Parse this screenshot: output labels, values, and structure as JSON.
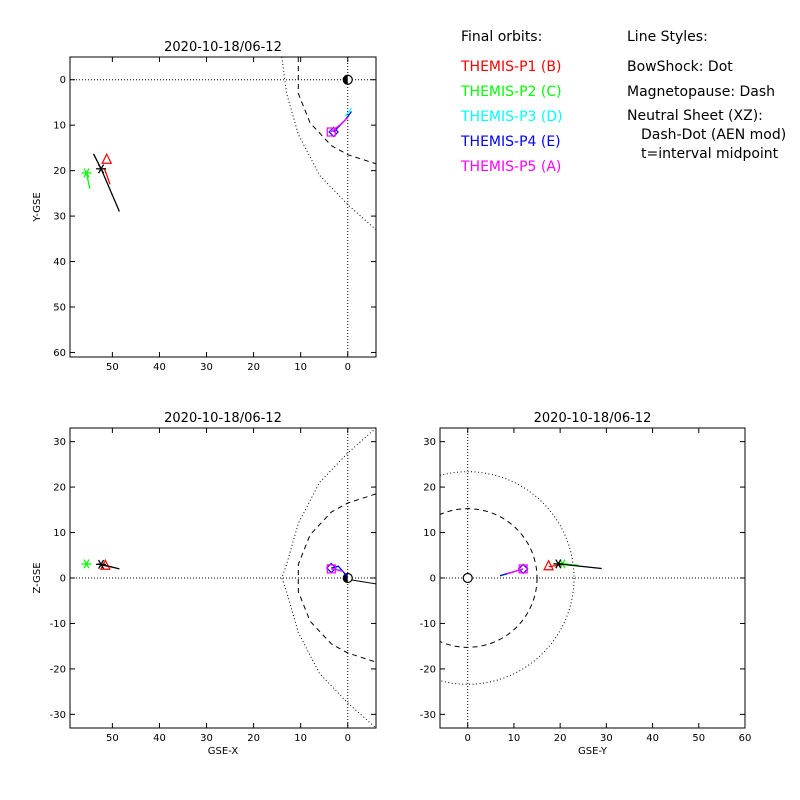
{
  "legend": {
    "orbits_title": "Final orbits:",
    "probes": [
      {
        "label": "THEMIS-P1 (B)",
        "color": "#ff0000"
      },
      {
        "label": "THEMIS-P2 (C)",
        "color": "#00ff00"
      },
      {
        "label": "THEMIS-P3 (D)",
        "color": "#00ffff"
      },
      {
        "label": "THEMIS-P4 (E)",
        "color": "#0000ff"
      },
      {
        "label": "THEMIS-P5 (A)",
        "color": "#ff00ff"
      }
    ],
    "styles_title": "Line Styles:",
    "styles": [
      "BowShock: Dot",
      "Magnetopause: Dash",
      "Neutral Sheet (XZ):",
      "Dash-Dot (AEN mod)",
      "t=interval midpoint"
    ]
  },
  "chart_data": [
    {
      "type": "line",
      "title": "2020-10-18/06-12",
      "xlabel": "",
      "ylabel": "Y-GSE",
      "xlim": [
        59,
        -6
      ],
      "ylim": [
        61,
        -5
      ],
      "xticks": [
        50,
        40,
        30,
        20,
        10,
        0
      ],
      "yticks": [
        0,
        10,
        20,
        30,
        40,
        50,
        60
      ],
      "reference_lines": {
        "x": 0,
        "y": 0
      },
      "bowshock": [
        [
          14,
          -5
        ],
        [
          13,
          3
        ],
        [
          10.5,
          12
        ],
        [
          6,
          21
        ],
        [
          0,
          27.5
        ],
        [
          -6,
          33
        ]
      ],
      "magnetopause": [
        [
          10.5,
          -5
        ],
        [
          10.5,
          3
        ],
        [
          8,
          9.5
        ],
        [
          3.5,
          14.5
        ],
        [
          0,
          16.5
        ],
        [
          -6,
          18.5
        ]
      ],
      "earth": [
        0,
        0
      ],
      "series": [
        {
          "name": "THEMIS-P1 (B)",
          "color": "#ff0000",
          "points": [
            [
              50.5,
              23
            ],
            [
              51.7,
              19.5
            ]
          ],
          "marker": "triangle",
          "marker_at": [
            51.2,
            17.5
          ]
        },
        {
          "name": "THEMIS-P2 (C)",
          "color": "#00ff00",
          "points": [
            [
              54.8,
              24
            ],
            [
              55.5,
              20.5
            ]
          ],
          "marker": "asterisk",
          "marker_at": [
            55.5,
            20.5
          ]
        },
        {
          "name": "THEMIS-P3 (D)",
          "color": "#00ffff",
          "points": [
            [
              0.5,
              8
            ],
            [
              -0.8,
              6.3
            ]
          ]
        },
        {
          "name": "THEMIS-P4 (E)",
          "color": "#0000ff",
          "points": [
            [
              3,
              11.5
            ],
            [
              0.5,
              8.8
            ],
            [
              -0.8,
              7
            ]
          ],
          "marker": "diamond",
          "marker_at": [
            3,
            11.5
          ]
        },
        {
          "name": "THEMIS-P5 (A)",
          "color": "#ff00ff",
          "points": [
            [
              3.5,
              11.5
            ],
            [
              1.5,
              9.8
            ],
            [
              0,
              8.3
            ]
          ],
          "marker": "square",
          "marker_at": [
            3.5,
            11.5
          ]
        },
        {
          "name": "",
          "color": "#000000",
          "points": [
            [
              54,
              16.3
            ],
            [
              52.4,
              19.6
            ],
            [
              48.5,
              29
            ]
          ],
          "marker": "asterisk",
          "marker_at": [
            52.4,
            19.6
          ]
        }
      ]
    },
    {
      "type": "line",
      "title": "2020-10-18/06-12",
      "xlabel": "GSE-X",
      "ylabel": "Z-GSE",
      "xlim": [
        59,
        -6
      ],
      "ylim": [
        -33,
        33
      ],
      "xticks": [
        50,
        40,
        30,
        20,
        10,
        0
      ],
      "yticks": [
        -30,
        -20,
        -10,
        0,
        10,
        20,
        30
      ],
      "reference_lines": {
        "x": 0,
        "y": 0
      },
      "bowshock": [
        [
          -6,
          33
        ],
        [
          0,
          27.5
        ],
        [
          6,
          21
        ],
        [
          10.5,
          12
        ],
        [
          13,
          3
        ],
        [
          14,
          0
        ],
        [
          13,
          -3
        ],
        [
          10.5,
          -12
        ],
        [
          6,
          -21
        ],
        [
          0,
          -27.5
        ],
        [
          -6,
          -33
        ]
      ],
      "magnetopause": [
        [
          -6,
          18.5
        ],
        [
          0,
          16.5
        ],
        [
          3.5,
          14.5
        ],
        [
          8,
          9.5
        ],
        [
          10.5,
          3
        ],
        [
          10.5,
          0
        ],
        [
          10.5,
          -3
        ],
        [
          8,
          -9.5
        ],
        [
          3.5,
          -14.5
        ],
        [
          0,
          -16.5
        ],
        [
          -6,
          -18.5
        ]
      ],
      "earth": [
        0,
        0
      ],
      "series": [
        {
          "name": "THEMIS-P1 (B)",
          "color": "#ff0000",
          "points": [
            [
              52,
              2.8
            ],
            [
              50,
              2.4
            ]
          ],
          "marker": "triangle",
          "marker_at": [
            51.5,
            2.8
          ]
        },
        {
          "name": "THEMIS-P2 (C)",
          "color": "#00ff00",
          "points": [
            [
              55.5,
              3.1
            ]
          ],
          "marker": "asterisk",
          "marker_at": [
            55.5,
            3.1
          ]
        },
        {
          "name": "THEMIS-P3 (D)",
          "color": "#00ffff",
          "points": [
            [
              3.5,
              2.2
            ],
            [
              1,
              1.6
            ]
          ]
        },
        {
          "name": "THEMIS-P4 (E)",
          "color": "#0000ff",
          "points": [
            [
              3.5,
              2.2
            ],
            [
              2,
              2.6
            ],
            [
              0,
              0.2
            ]
          ],
          "marker": "diamond",
          "marker_at": [
            3.5,
            2.2
          ]
        },
        {
          "name": "THEMIS-P5 (A)",
          "color": "#ff00ff",
          "points": [
            [
              3.5,
              2
            ],
            [
              1,
              1.5
            ]
          ],
          "marker": "square",
          "marker_at": [
            3.5,
            2
          ]
        },
        {
          "name": "",
          "color": "#000000",
          "points": [
            [
              53,
              3.1
            ],
            [
              52.4,
              3
            ],
            [
              48.5,
              2
            ]
          ],
          "marker": "asterisk",
          "marker_at": [
            52.4,
            3
          ]
        }
      ],
      "tail_line": [
        [
          0,
          -0.3
        ],
        [
          -6,
          -1.3
        ]
      ]
    },
    {
      "type": "line",
      "title": "2020-10-18/06-12",
      "xlabel": "GSE-Y",
      "ylabel": "",
      "xlim": [
        -6,
        60
      ],
      "ylim": [
        -33,
        33
      ],
      "xticks": [
        0,
        10,
        20,
        30,
        40,
        50,
        60
      ],
      "yticks": [
        -30,
        -20,
        -10,
        0,
        10,
        20,
        30
      ],
      "reference_lines": {
        "x": 0,
        "y": 0
      },
      "bowshock_radius": 23,
      "magnetopause_radius": 15,
      "earth": [
        0,
        0
      ],
      "series": [
        {
          "name": "THEMIS-P1 (B)",
          "color": "#ff0000",
          "points": [
            [
              17.5,
              2.5
            ],
            [
              21,
              3
            ]
          ],
          "marker": "triangle",
          "marker_at": [
            17.5,
            2.7
          ]
        },
        {
          "name": "THEMIS-P2 (C)",
          "color": "#00ff00",
          "points": [
            [
              19.5,
              3.2
            ],
            [
              24,
              2.8
            ]
          ],
          "marker": "asterisk",
          "marker_at": [
            20.5,
            3.1
          ]
        },
        {
          "name": "THEMIS-P3 (D)",
          "color": "#00ffff",
          "points": [
            [
              7,
              0.5
            ],
            [
              10,
              1.3
            ]
          ]
        },
        {
          "name": "THEMIS-P4 (E)",
          "color": "#0000ff",
          "points": [
            [
              7,
              0.5
            ],
            [
              12,
              2
            ]
          ],
          "marker": "diamond",
          "marker_at": [
            12,
            2
          ]
        },
        {
          "name": "THEMIS-P5 (A)",
          "color": "#ff00ff",
          "points": [
            [
              8.5,
              0.9
            ],
            [
              12,
              2
            ]
          ],
          "marker": "square",
          "marker_at": [
            12,
            2
          ]
        },
        {
          "name": "",
          "color": "#000000",
          "points": [
            [
              19.5,
              3.1
            ],
            [
              29,
              2.1
            ]
          ],
          "marker": "asterisk",
          "marker_at": [
            19.6,
            3.1
          ]
        }
      ]
    }
  ]
}
